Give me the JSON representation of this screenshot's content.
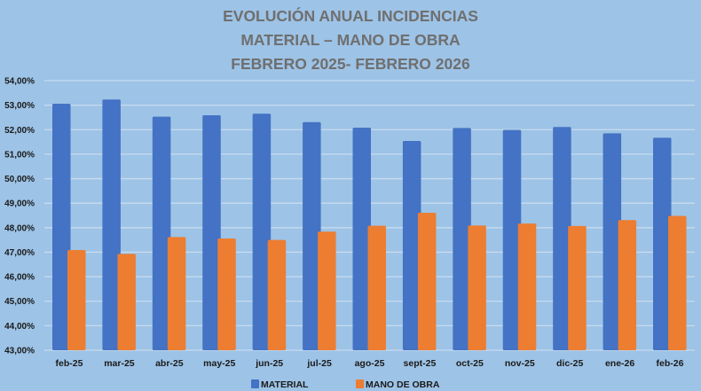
{
  "chart_data": {
    "type": "bar",
    "title": [
      "EVOLUCIÓN ANUAL INCIDENCIAS",
      "MATERIAL – MANO DE OBRA",
      "FEBRERO 2025- FEBRERO 2026"
    ],
    "xlabel": "",
    "ylabel": "",
    "ylim": [
      43,
      54
    ],
    "yticks": [
      43,
      44,
      45,
      46,
      47,
      48,
      49,
      50,
      51,
      52,
      53,
      54
    ],
    "ytick_labels": [
      "43,00%",
      "44,00%",
      "45,00%",
      "46,00%",
      "47,00%",
      "48,00%",
      "49,00%",
      "50,00%",
      "51,00%",
      "52,00%",
      "53,00%",
      "54,00%"
    ],
    "grid": true,
    "legend_position": "bottom",
    "categories": [
      "feb-25",
      "mar-25",
      "abr-25",
      "may-25",
      "jun-25",
      "jul-25",
      "ago-25",
      "sept-25",
      "oct-25",
      "nov-25",
      "dic-25",
      "ene-26",
      "feb-26"
    ],
    "series": [
      {
        "name": "MATERIAL",
        "color": "#4472c4",
        "values": [
          53.06,
          53.23,
          52.53,
          52.59,
          52.65,
          52.31,
          52.08,
          51.54,
          52.07,
          51.99,
          52.11,
          51.85,
          51.67
        ]
      },
      {
        "name": "MANO DE OBRA",
        "color": "#ed7d31",
        "values": [
          47.09,
          46.93,
          47.62,
          47.56,
          47.5,
          47.84,
          48.08,
          48.61,
          48.09,
          48.17,
          48.07,
          48.31,
          48.48
        ]
      }
    ]
  }
}
